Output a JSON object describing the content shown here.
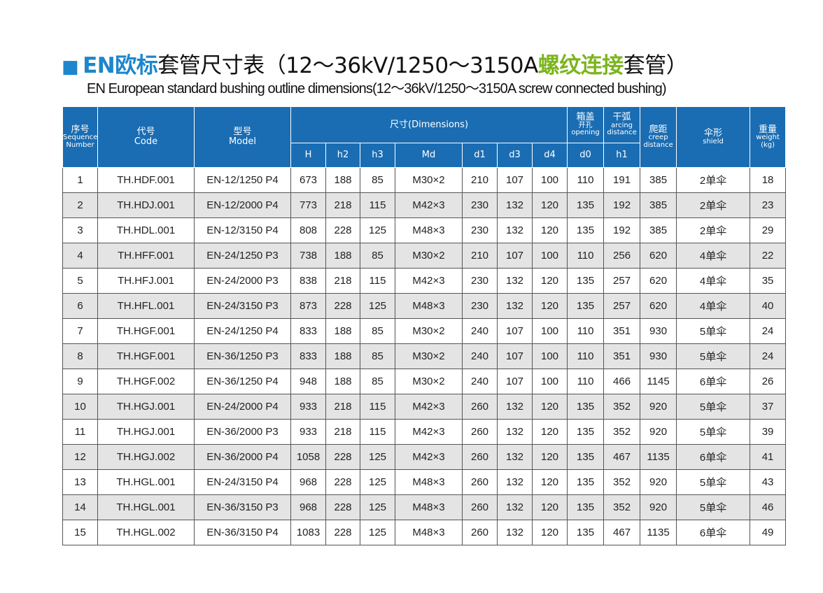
{
  "title": {
    "square": "■",
    "prefix": "EN欧标",
    "main": "套管尺寸表（12～36kV/1250～3150A",
    "highlight": "螺纹连接",
    "suffix": "套管）"
  },
  "subtitle": "EN European standard bushing outline dimensions(12～36kV/1250～3150A screw connected bushing)",
  "table": {
    "header": {
      "sequence": [
        "序号",
        "Sequence",
        "Number"
      ],
      "code": [
        "代号",
        "Code"
      ],
      "model": [
        "型号",
        "Model"
      ],
      "dimensions": [
        "尺寸(Dimensions)"
      ],
      "opening": [
        "箱盖",
        "开孔",
        "opening"
      ],
      "arcing": [
        "干弧",
        "arcing",
        "distance"
      ],
      "creep": [
        "爬距",
        "creep",
        "distance"
      ],
      "shield": [
        "伞形",
        "shield"
      ],
      "weight": [
        "重量",
        "weight",
        "(kg)"
      ],
      "sub": [
        "H",
        "h2",
        "h3",
        "Md",
        "d1",
        "d3",
        "d4",
        "d0",
        "h1"
      ]
    },
    "rows": [
      [
        1,
        "TH.HDF.001",
        "EN-12/1250 P4",
        673,
        188,
        85,
        "M30×2",
        210,
        107,
        100,
        110,
        191,
        385,
        "2单伞",
        18
      ],
      [
        2,
        "TH.HDJ.001",
        "EN-12/2000 P4",
        773,
        218,
        115,
        "M42×3",
        230,
        132,
        120,
        135,
        192,
        385,
        "2单伞",
        23
      ],
      [
        3,
        "TH.HDL.001",
        "EN-12/3150 P4",
        808,
        228,
        125,
        "M48×3",
        230,
        132,
        120,
        135,
        192,
        385,
        "2单伞",
        29
      ],
      [
        4,
        "TH.HFF.001",
        "EN-24/1250 P3",
        738,
        188,
        85,
        "M30×2",
        210,
        107,
        100,
        110,
        256,
        620,
        "4单伞",
        22
      ],
      [
        5,
        "TH.HFJ.001",
        "EN-24/2000 P3",
        838,
        218,
        115,
        "M42×3",
        230,
        132,
        120,
        135,
        257,
        620,
        "4单伞",
        35
      ],
      [
        6,
        "TH.HFL.001",
        "EN-24/3150 P3",
        873,
        228,
        125,
        "M48×3",
        230,
        132,
        120,
        135,
        257,
        620,
        "4单伞",
        40
      ],
      [
        7,
        "TH.HGF.001",
        "EN-24/1250 P4",
        833,
        188,
        85,
        "M30×2",
        240,
        107,
        100,
        110,
        351,
        930,
        "5单伞",
        24
      ],
      [
        8,
        "TH.HGF.001",
        "EN-36/1250 P3",
        833,
        188,
        85,
        "M30×2",
        240,
        107,
        100,
        110,
        351,
        930,
        "5单伞",
        24
      ],
      [
        9,
        "TH.HGF.002",
        "EN-36/1250 P4",
        948,
        188,
        85,
        "M30×2",
        240,
        107,
        100,
        110,
        466,
        1145,
        "6单伞",
        26
      ],
      [
        10,
        "TH.HGJ.001",
        "EN-24/2000 P4",
        933,
        218,
        115,
        "M42×3",
        260,
        132,
        120,
        135,
        352,
        920,
        "5单伞",
        37
      ],
      [
        11,
        "TH.HGJ.001",
        "EN-36/2000 P3",
        933,
        218,
        115,
        "M42×3",
        260,
        132,
        120,
        135,
        352,
        920,
        "5单伞",
        39
      ],
      [
        12,
        "TH.HGJ.002",
        "EN-36/2000 P4",
        1058,
        228,
        125,
        "M42×3",
        260,
        132,
        120,
        135,
        467,
        1135,
        "6单伞",
        41
      ],
      [
        13,
        "TH.HGL.001",
        "EN-24/3150 P4",
        968,
        228,
        125,
        "M48×3",
        260,
        132,
        120,
        135,
        352,
        920,
        "5单伞",
        43
      ],
      [
        14,
        "TH.HGL.001",
        "EN-36/3150 P3",
        968,
        228,
        125,
        "M48×3",
        260,
        132,
        120,
        135,
        352,
        920,
        "5单伞",
        46
      ],
      [
        15,
        "TH.HGL.002",
        "EN-36/3150 P4",
        1083,
        228,
        125,
        "M48×3",
        260,
        132,
        120,
        135,
        467,
        1135,
        "6单伞",
        49
      ]
    ]
  }
}
